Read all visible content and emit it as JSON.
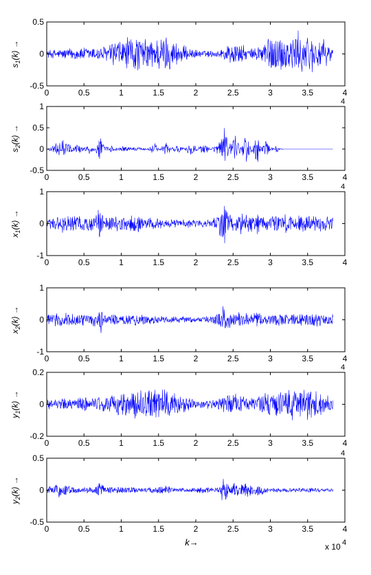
{
  "chart_data": [
    {
      "type": "line",
      "ylabel": "s1(k) →",
      "ylabel_main": "s",
      "ylabel_sub": "1",
      "ylabel_rest": "(k) →",
      "xlim": [
        0,
        40000
      ],
      "ylim": [
        -0.5,
        0.5
      ],
      "xticks": [
        "0",
        "0.5",
        "1",
        "1.5",
        "2",
        "2.5",
        "3",
        "3.5",
        "4"
      ],
      "yticks": [
        "-0.5",
        "0",
        "0.5"
      ],
      "series": [
        {
          "color": "#0000ff",
          "length": 38400,
          "envelope_x": [
            0,
            2000,
            4000,
            6000,
            8000,
            9000,
            10000,
            11000,
            12000,
            13000,
            14000,
            15000,
            16000,
            17000,
            18000,
            20000,
            22000,
            23000,
            24000,
            25000,
            26000,
            27000,
            28000,
            29000,
            30000,
            31000,
            32000,
            33000,
            34000,
            35000,
            36000,
            37000,
            38000,
            38400
          ],
          "envelope_y": [
            0.07,
            0.09,
            0.11,
            0.12,
            0.14,
            0.24,
            0.26,
            0.3,
            0.32,
            0.25,
            0.28,
            0.3,
            0.33,
            0.25,
            0.16,
            0.07,
            0.06,
            0.06,
            0.15,
            0.2,
            0.18,
            0.09,
            0.1,
            0.25,
            0.32,
            0.34,
            0.3,
            0.35,
            0.38,
            0.33,
            0.3,
            0.25,
            0.15,
            0.12
          ]
        }
      ]
    },
    {
      "type": "line",
      "ylabel": "s2(k) →",
      "ylabel_main": "s",
      "ylabel_sub": "2",
      "ylabel_rest": "(k) →",
      "xlim": [
        0,
        40000
      ],
      "ylim": [
        -0.5,
        1
      ],
      "xticks": [
        "0",
        "0.5",
        "1",
        "1.5",
        "2",
        "2.5",
        "3",
        "3.5",
        "4"
      ],
      "yticks": [
        "-0.5",
        "0",
        "0.5",
        "1"
      ],
      "exponent": "4",
      "series": [
        {
          "color": "#0000ff",
          "length": 38400,
          "envelope_x": [
            0,
            1200,
            2000,
            2800,
            3500,
            4200,
            5000,
            5800,
            6500,
            7200,
            7800,
            8500,
            9500,
            10500,
            11500,
            12500,
            13500,
            14500,
            15200,
            16000,
            16800,
            17500,
            18500,
            19500,
            20200,
            21000,
            22000,
            23000,
            23800,
            24500,
            25200,
            26000,
            26800,
            27500,
            28200,
            28800,
            29500,
            30200,
            30800,
            31300,
            31800,
            38400
          ],
          "envelope_y": [
            0.0,
            0.15,
            0.25,
            0.2,
            0.05,
            0.15,
            0.05,
            0.15,
            0.05,
            0.4,
            0.05,
            0.1,
            0.04,
            0.08,
            0.04,
            0.05,
            0.02,
            0.15,
            0.03,
            0.2,
            0.04,
            0.12,
            0.02,
            0.2,
            0.03,
            0.15,
            0.02,
            0.15,
            0.55,
            0.1,
            0.4,
            0.15,
            0.35,
            0.05,
            0.45,
            0.05,
            0.25,
            0.03,
            0.1,
            0.02,
            0.0,
            0.0
          ]
        }
      ]
    },
    {
      "type": "line",
      "ylabel": "x1(k) →",
      "ylabel_main": "x",
      "ylabel_sub": "1",
      "ylabel_rest": "(k) →",
      "xlim": [
        0,
        40000
      ],
      "ylim": [
        -1,
        1
      ],
      "xticks": [
        "0",
        "0.5",
        "1",
        "1.5",
        "2",
        "2.5",
        "3",
        "3.5",
        "4"
      ],
      "yticks": [
        "-1",
        "0",
        "1"
      ],
      "exponent": "4",
      "series": [
        {
          "color": "#0000ff",
          "length": 38400,
          "envelope_x": [
            0,
            2000,
            3000,
            5000,
            6500,
            7000,
            7300,
            7600,
            8500,
            10000,
            12000,
            14000,
            16000,
            18000,
            20000,
            22000,
            23000,
            23800,
            24200,
            24800,
            26000,
            27000,
            28000,
            28300,
            28800,
            30000,
            32000,
            34000,
            36000,
            38400
          ],
          "envelope_y": [
            0.2,
            0.3,
            0.3,
            0.25,
            0.3,
            0.5,
            0.6,
            0.25,
            0.25,
            0.25,
            0.3,
            0.2,
            0.15,
            0.15,
            0.12,
            0.15,
            0.3,
            0.75,
            0.5,
            0.3,
            0.35,
            0.3,
            0.25,
            0.4,
            0.25,
            0.25,
            0.3,
            0.3,
            0.3,
            0.25
          ]
        }
      ]
    },
    {
      "type": "line",
      "ylabel": "x2(k) →",
      "ylabel_main": "x",
      "ylabel_sub": "2",
      "ylabel_rest": "(k) →",
      "xlim": [
        0,
        40000
      ],
      "ylim": [
        -1,
        1
      ],
      "xticks": [
        "0",
        "0.5",
        "1",
        "1.5",
        "2",
        "2.5",
        "3",
        "3.5",
        "4"
      ],
      "yticks": [
        "-1",
        "0",
        "1"
      ],
      "series": [
        {
          "color": "#0000ff",
          "length": 38400,
          "envelope_x": [
            0,
            2000,
            3000,
            5000,
            6500,
            7000,
            7300,
            7600,
            8500,
            10000,
            12000,
            14000,
            16000,
            18000,
            20000,
            22000,
            23000,
            23800,
            24200,
            24800,
            26000,
            27000,
            28000,
            28300,
            28800,
            30000,
            32000,
            34000,
            36000,
            38400
          ],
          "envelope_y": [
            0.2,
            0.25,
            0.25,
            0.2,
            0.25,
            0.4,
            0.45,
            0.2,
            0.2,
            0.2,
            0.2,
            0.15,
            0.12,
            0.12,
            0.1,
            0.12,
            0.25,
            0.55,
            0.35,
            0.25,
            0.25,
            0.25,
            0.2,
            0.35,
            0.2,
            0.2,
            0.22,
            0.22,
            0.22,
            0.2
          ]
        }
      ]
    },
    {
      "type": "line",
      "ylabel": "y1(k) →",
      "ylabel_main": "y",
      "ylabel_sub": "1",
      "ylabel_rest": "(k) →",
      "xlim": [
        0,
        40000
      ],
      "ylim": [
        -0.2,
        0.2
      ],
      "xticks": [
        "0",
        "0.5",
        "1",
        "1.5",
        "2",
        "2.5",
        "3",
        "3.5",
        "4"
      ],
      "yticks": [
        "-0.2",
        "0",
        "0.2"
      ],
      "exponent": "4",
      "series": [
        {
          "color": "#0000ff",
          "length": 38400,
          "envelope_x": [
            0,
            2000,
            4000,
            6000,
            8000,
            9000,
            10000,
            11000,
            12000,
            13000,
            14000,
            15000,
            16000,
            17000,
            18000,
            20000,
            22000,
            23000,
            24000,
            25000,
            26000,
            27000,
            28000,
            29000,
            30000,
            31000,
            32000,
            33000,
            34000,
            35000,
            36000,
            37000,
            38000,
            38400
          ],
          "envelope_y": [
            0.03,
            0.04,
            0.05,
            0.05,
            0.06,
            0.08,
            0.09,
            0.1,
            0.11,
            0.09,
            0.1,
            0.1,
            0.1,
            0.08,
            0.06,
            0.03,
            0.03,
            0.04,
            0.07,
            0.08,
            0.07,
            0.04,
            0.05,
            0.08,
            0.1,
            0.1,
            0.09,
            0.11,
            0.13,
            0.12,
            0.1,
            0.08,
            0.06,
            0.05
          ]
        }
      ]
    },
    {
      "type": "line",
      "ylabel": "y2(k) →",
      "ylabel_main": "y",
      "ylabel_sub": "2",
      "ylabel_rest": "(k) →",
      "xlim": [
        0,
        40000
      ],
      "ylim": [
        -0.5,
        0.5
      ],
      "xticks": [
        "0",
        "0.5",
        "1",
        "1.5",
        "2",
        "2.5",
        "3",
        "3.5",
        "4"
      ],
      "yticks": [
        "-0.5",
        "0",
        "0.5"
      ],
      "exponent": "4",
      "xlabel": "k→",
      "xscale_label": "x 10",
      "xscale_exp": "4",
      "series": [
        {
          "color": "#0000ff",
          "length": 38400,
          "envelope_x": [
            0,
            1200,
            2000,
            2800,
            3500,
            4500,
            5500,
            6500,
            7200,
            7800,
            8500,
            10000,
            12000,
            14000,
            15000,
            16000,
            17000,
            18500,
            20000,
            21000,
            22000,
            23000,
            23800,
            24500,
            25500,
            26000,
            27000,
            27800,
            28500,
            29500,
            31000,
            33000,
            35000,
            37000,
            38400
          ],
          "envelope_y": [
            0.05,
            0.1,
            0.15,
            0.1,
            0.06,
            0.06,
            0.05,
            0.06,
            0.18,
            0.06,
            0.06,
            0.06,
            0.05,
            0.05,
            0.06,
            0.08,
            0.04,
            0.04,
            0.04,
            0.08,
            0.04,
            0.06,
            0.25,
            0.12,
            0.15,
            0.1,
            0.14,
            0.06,
            0.12,
            0.04,
            0.04,
            0.04,
            0.04,
            0.03,
            0.03
          ]
        }
      ]
    }
  ]
}
